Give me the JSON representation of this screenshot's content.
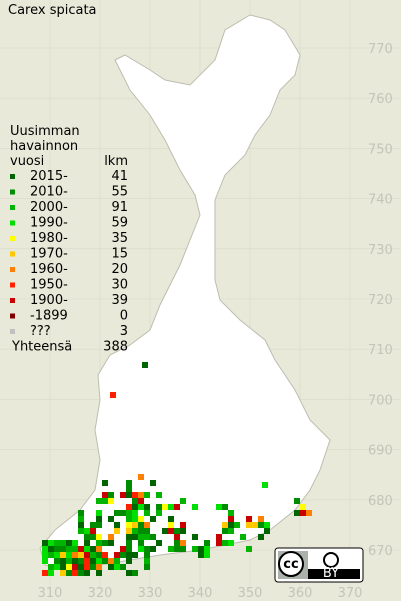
{
  "title": "Carex spicata",
  "legend": {
    "heading": [
      "Uusimman",
      "havainnon",
      "vuosi"
    ],
    "count_heading": "lkm",
    "entries": [
      {
        "label": "2015-",
        "count": 41,
        "color": "#006400"
      },
      {
        "label": "2010-",
        "count": 55,
        "color": "#008c00"
      },
      {
        "label": "2000-",
        "count": 91,
        "color": "#00b400"
      },
      {
        "label": "1990-",
        "count": 59,
        "color": "#00e000"
      },
      {
        "label": "1980-",
        "count": 35,
        "color": "#ffff00"
      },
      {
        "label": "1970-",
        "count": 15,
        "color": "#ffc800"
      },
      {
        "label": "1960-",
        "count": 20,
        "color": "#ff8000"
      },
      {
        "label": "1950-",
        "count": 30,
        "color": "#ff2000"
      },
      {
        "label": "1900-",
        "count": 39,
        "color": "#c80000"
      },
      {
        "label": "-1899",
        "count": 0,
        "color": "#800000"
      },
      {
        "label": "???",
        "count": 3,
        "color": "#c0c0c0"
      }
    ],
    "total": {
      "label": "Yhteensä",
      "count": 388
    }
  },
  "axes": {
    "x_labels": [
      310,
      320,
      330,
      340,
      350,
      360,
      370
    ],
    "y_labels": [
      770,
      760,
      750,
      740,
      730,
      720,
      710,
      700,
      690,
      680,
      670
    ]
  },
  "badge": {
    "cc": "cc",
    "by": "BY"
  }
}
